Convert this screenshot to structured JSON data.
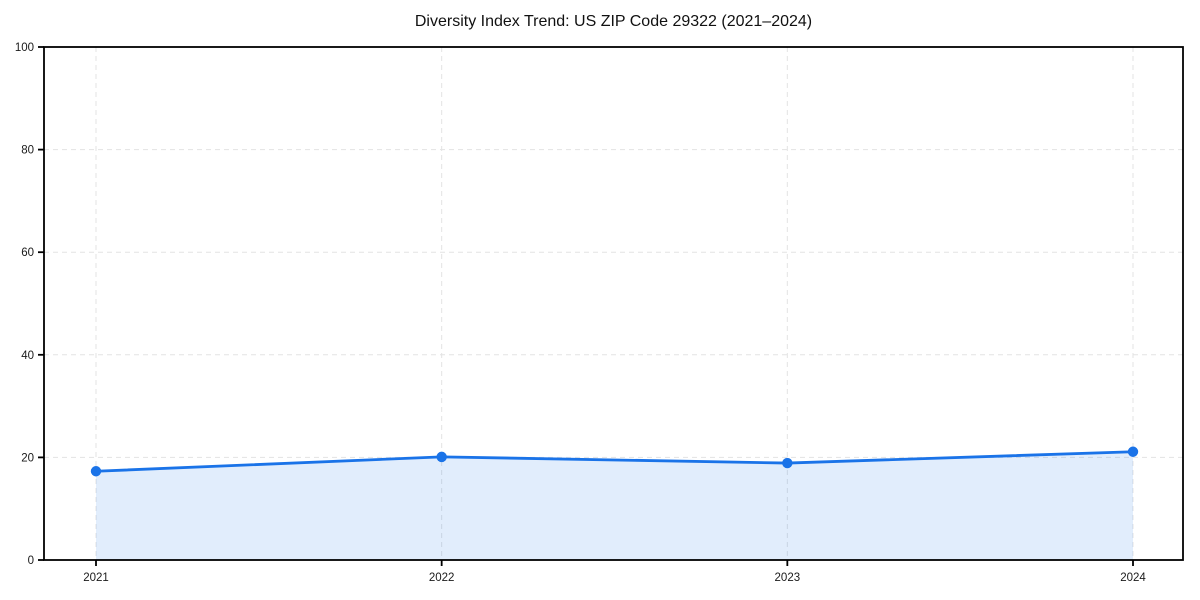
{
  "chart_data": {
    "type": "line",
    "title": "Diversity Index Trend: US ZIP Code 29322 (2021–2024)",
    "categories": [
      "2021",
      "2022",
      "2023",
      "2024"
    ],
    "series": [
      {
        "name": "Diversity Index",
        "values": [
          17.3,
          20.1,
          18.9,
          21.1
        ]
      }
    ],
    "xlabel": "",
    "ylabel": "",
    "ylim": [
      0,
      100
    ],
    "yticks": [
      0,
      20,
      40,
      60,
      80,
      100
    ],
    "grid": "dashed-both-axes",
    "legend": "none",
    "area_fill": true,
    "marker": "circle",
    "colors": {
      "line": "#1a73e8",
      "marker": "#1a73e8",
      "area_fill": "rgba(26,115,232,0.13)",
      "grid": "#e3e3e3",
      "axis": "#000000",
      "tick_label": "#1a1a1a",
      "background": "#ffffff"
    }
  }
}
